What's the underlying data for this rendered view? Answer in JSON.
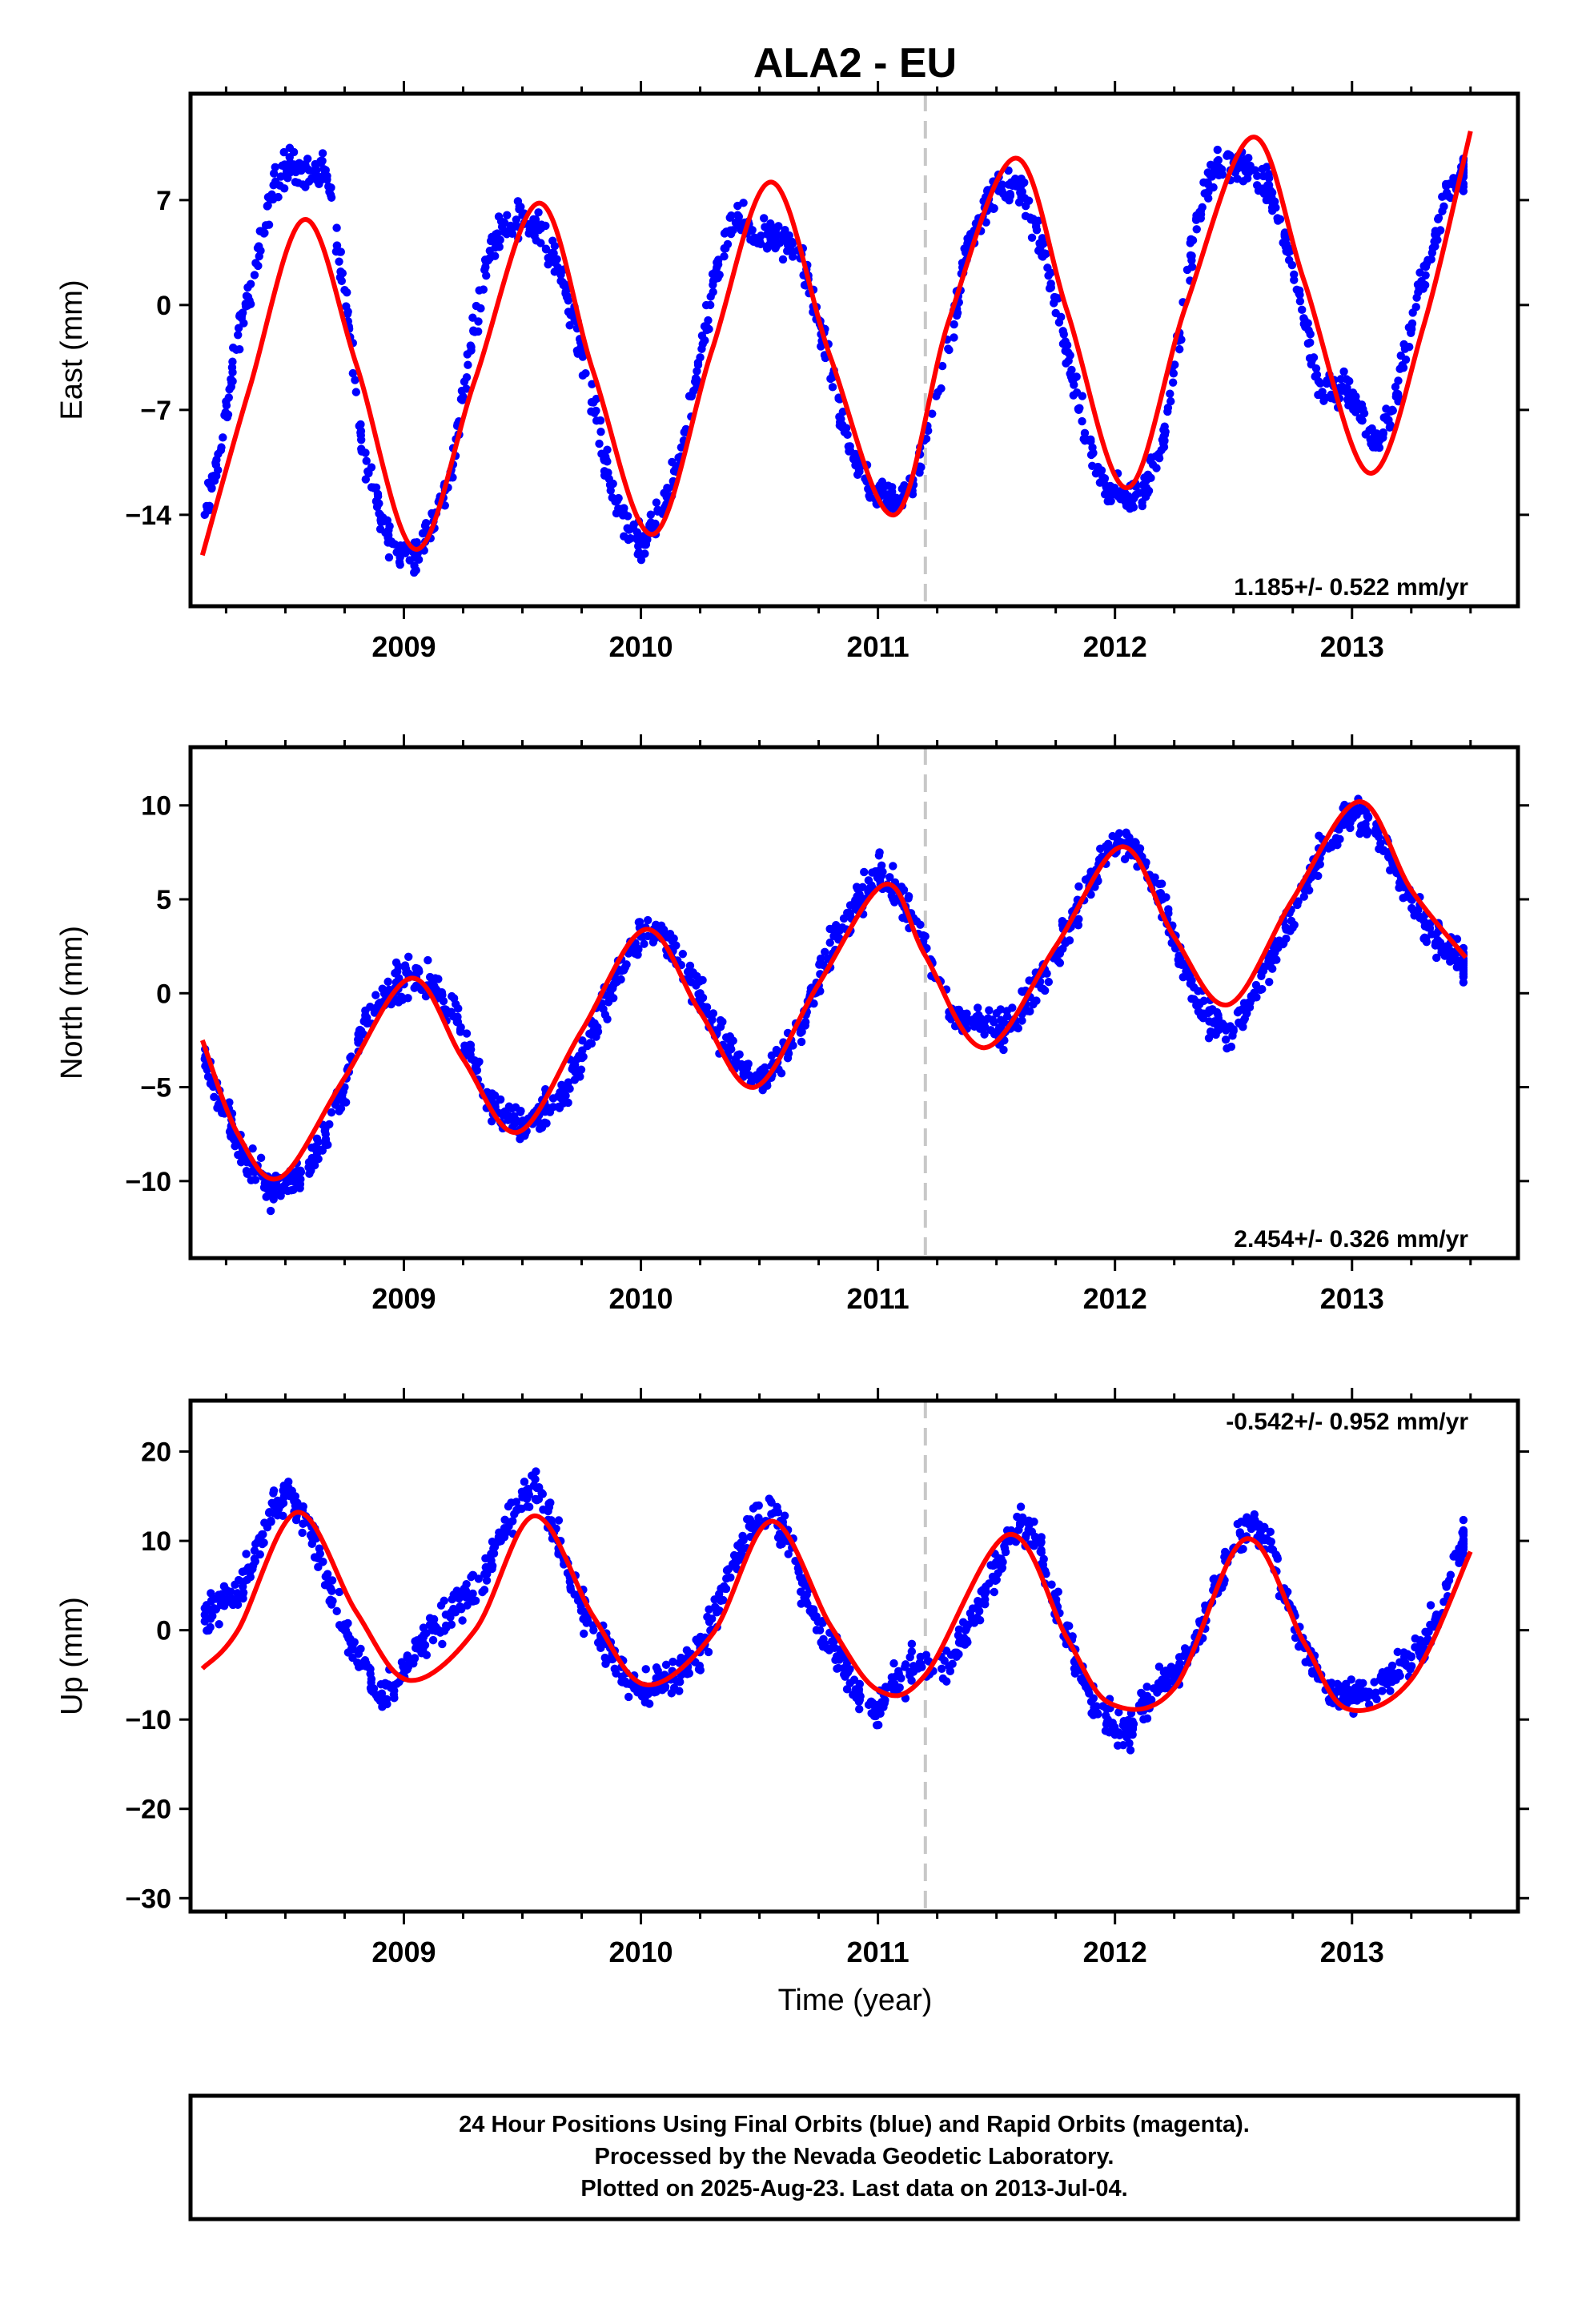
{
  "title": "ALA2 - EU",
  "colors": {
    "points": "#0000ff",
    "fit": "#ff0000",
    "eventLine": "#c8c8c8",
    "frame": "#000000"
  },
  "xlabel": "Time (year)",
  "chart_data": [
    {
      "type": "scatter",
      "component": "East",
      "ylabel": "East (mm)",
      "rate": "1.185+/- 0.522 mm/yr",
      "rate_position": "bottom-right",
      "xlim": [
        2008.1,
        2013.7
      ],
      "ylim": [
        -20.1,
        14.1
      ],
      "yticks": [
        {
          "value": 7,
          "label": "7"
        },
        {
          "value": 0,
          "label": "0"
        },
        {
          "value": -7,
          "label": "−7"
        },
        {
          "value": -14,
          "label": "−14"
        }
      ],
      "xticks": [
        {
          "value": 2009,
          "label": "2009"
        },
        {
          "value": 2010,
          "label": "2010"
        },
        {
          "value": 2011,
          "label": "2011"
        },
        {
          "value": 2012,
          "label": "2012"
        },
        {
          "value": 2013,
          "label": "2013"
        }
      ],
      "event_line_x": 2011.2,
      "series": [
        {
          "kind": "observed",
          "x": [
            2008.16,
            2008.23,
            2008.3,
            2008.37,
            2008.45,
            2008.52,
            2008.6,
            2008.67,
            2008.75,
            2008.82,
            2008.9,
            2008.97,
            2009.05,
            2009.12,
            2009.2,
            2009.27,
            2009.35,
            2009.42,
            2009.5,
            2009.57,
            2009.65,
            2009.72,
            2009.8,
            2009.87,
            2009.95,
            2010.02,
            2010.1,
            2010.17,
            2010.25,
            2010.32,
            2010.4,
            2010.47,
            2010.55,
            2010.62,
            2010.7,
            2010.77,
            2010.85,
            2010.92,
            2011.0,
            2011.07,
            2011.15,
            2011.3,
            2011.37,
            2011.45,
            2011.52,
            2011.6,
            2011.67,
            2011.75,
            2011.82,
            2011.9,
            2011.97,
            2012.05,
            2012.12,
            2012.2,
            2012.27,
            2012.35,
            2012.42,
            2012.5,
            2012.57,
            2012.65,
            2012.72,
            2012.8,
            2012.87,
            2012.95,
            2013.02,
            2013.1,
            2013.17,
            2013.25,
            2013.32,
            2013.4,
            2013.47
          ],
          "y": [
            -14.0,
            -9.5,
            -2.0,
            2.0,
            8.0,
            9.5,
            9.0,
            9.0,
            1.0,
            -9.0,
            -14.0,
            -16.5,
            -16.5,
            -15.0,
            -11.0,
            -4.0,
            3.0,
            5.5,
            6.0,
            5.0,
            2.5,
            -1.0,
            -6.5,
            -12.0,
            -15.0,
            -16.0,
            -13.5,
            -9.5,
            -3.5,
            2.5,
            5.5,
            5.0,
            4.5,
            4.0,
            2.0,
            -2.5,
            -8.0,
            -11.0,
            -13.0,
            -13.0,
            -12.0,
            -3.0,
            3.5,
            6.5,
            8.0,
            7.5,
            5.0,
            0.5,
            -5.0,
            -10.0,
            -12.5,
            -13.0,
            -12.5,
            -9.0,
            -2.0,
            6.0,
            9.0,
            9.5,
            9.0,
            8.0,
            4.5,
            -1.0,
            -6.0,
            -5.5,
            -6.5,
            -9.5,
            -7.0,
            -1.5,
            3.0,
            7.5,
            9.0
          ]
        },
        {
          "kind": "model",
          "x": [
            2008.15,
            2008.35,
            2008.58,
            2008.8,
            2009.05,
            2009.3,
            2009.57,
            2009.8,
            2010.05,
            2010.3,
            2010.55,
            2010.8,
            2011.07,
            2011.3,
            2011.58,
            2011.8,
            2012.05,
            2012.3,
            2012.58,
            2012.8,
            2013.07,
            2013.3,
            2013.5
          ],
          "y": [
            -16.7,
            -5.5,
            5.7,
            -4.0,
            -16.3,
            -5.0,
            6.8,
            -4.5,
            -15.3,
            -3.0,
            8.2,
            -3.5,
            -14.0,
            -1.0,
            9.8,
            -0.5,
            -12.2,
            0.0,
            11.2,
            1.5,
            -11.2,
            -1.5,
            11.6
          ]
        }
      ]
    },
    {
      "type": "scatter",
      "component": "North",
      "ylabel": "North (mm)",
      "rate": "2.454+/- 0.326 mm/yr",
      "rate_position": "bottom-right",
      "xlim": [
        2008.1,
        2013.7
      ],
      "ylim": [
        -14.1,
        13.1
      ],
      "yticks": [
        {
          "value": 10,
          "label": "10"
        },
        {
          "value": 5,
          "label": "5"
        },
        {
          "value": 0,
          "label": "0"
        },
        {
          "value": -5,
          "label": "−5"
        },
        {
          "value": -10,
          "label": "−10"
        }
      ],
      "xticks": [
        {
          "value": 2009,
          "label": "2009"
        },
        {
          "value": 2010,
          "label": "2010"
        },
        {
          "value": 2011,
          "label": "2011"
        },
        {
          "value": 2012,
          "label": "2012"
        },
        {
          "value": 2013,
          "label": "2013"
        }
      ],
      "event_line_x": 2011.2,
      "series": [
        {
          "kind": "observed",
          "x": [
            2008.16,
            2008.23,
            2008.3,
            2008.37,
            2008.45,
            2008.52,
            2008.6,
            2008.67,
            2008.75,
            2008.82,
            2008.9,
            2008.97,
            2009.05,
            2009.12,
            2009.2,
            2009.27,
            2009.35,
            2009.42,
            2009.5,
            2009.57,
            2009.65,
            2009.72,
            2009.8,
            2009.87,
            2009.95,
            2010.02,
            2010.1,
            2010.17,
            2010.25,
            2010.32,
            2010.4,
            2010.47,
            2010.55,
            2010.62,
            2010.7,
            2010.77,
            2010.85,
            2010.92,
            2011.0,
            2011.07,
            2011.15,
            2011.3,
            2011.37,
            2011.45,
            2011.52,
            2011.6,
            2011.67,
            2011.75,
            2011.82,
            2011.9,
            2011.97,
            2012.05,
            2012.12,
            2012.2,
            2012.27,
            2012.35,
            2012.42,
            2012.5,
            2012.57,
            2012.65,
            2012.72,
            2012.8,
            2012.87,
            2012.95,
            2013.02,
            2013.1,
            2013.17,
            2013.25,
            2013.32,
            2013.4,
            2013.47
          ],
          "y": [
            -3.5,
            -6.0,
            -8.0,
            -9.5,
            -10.5,
            -10.0,
            -9.0,
            -7.5,
            -5.0,
            -2.0,
            -0.5,
            0.5,
            1.0,
            0.5,
            -1.0,
            -3.0,
            -5.5,
            -6.5,
            -7.0,
            -6.5,
            -5.5,
            -4.0,
            -2.0,
            0.0,
            2.5,
            3.5,
            3.0,
            1.5,
            0.0,
            -2.0,
            -3.5,
            -4.5,
            -4.5,
            -3.0,
            -1.0,
            1.5,
            3.5,
            5.0,
            6.5,
            5.5,
            4.0,
            -1.0,
            -1.5,
            -1.5,
            -2.0,
            -1.0,
            0.5,
            2.0,
            4.0,
            6.0,
            7.5,
            8.0,
            7.0,
            5.0,
            2.0,
            -0.5,
            -1.5,
            -2.0,
            -0.5,
            1.5,
            3.5,
            5.5,
            7.5,
            9.0,
            9.5,
            8.5,
            7.0,
            5.0,
            3.5,
            2.5,
            1.5
          ]
        },
        {
          "kind": "model",
          "x": [
            2008.15,
            2008.3,
            2008.48,
            2008.75,
            2009.03,
            2009.25,
            2009.48,
            2009.75,
            2010.02,
            2010.25,
            2010.48,
            2010.75,
            2011.03,
            2011.2,
            2011.45,
            2011.75,
            2012.03,
            2012.25,
            2012.48,
            2012.75,
            2013.03,
            2013.25,
            2013.48
          ],
          "y": [
            -2.5,
            -7.5,
            -9.8,
            -4.5,
            0.8,
            -3.5,
            -7.4,
            -2.0,
            3.4,
            -1.0,
            -5.0,
            0.5,
            5.8,
            2.0,
            -2.9,
            2.5,
            7.8,
            3.0,
            -0.6,
            5.0,
            10.2,
            5.5,
            1.9
          ]
        }
      ]
    },
    {
      "type": "scatter",
      "component": "Up",
      "ylabel": "Up (mm)",
      "rate": "-0.542+/- 0.952 mm/yr",
      "rate_position": "top-right",
      "xlim": [
        2008.1,
        2013.7
      ],
      "ylim": [
        -31.5,
        25.7
      ],
      "yticks": [
        {
          "value": 20,
          "label": "20"
        },
        {
          "value": 10,
          "label": "10"
        },
        {
          "value": 0,
          "label": "0"
        },
        {
          "value": -10,
          "label": "−10"
        },
        {
          "value": -20,
          "label": "−20"
        },
        {
          "value": -30,
          "label": "−30"
        }
      ],
      "xticks": [
        {
          "value": 2009,
          "label": "2009"
        },
        {
          "value": 2010,
          "label": "2010"
        },
        {
          "value": 2011,
          "label": "2011"
        },
        {
          "value": 2012,
          "label": "2012"
        },
        {
          "value": 2013,
          "label": "2013"
        }
      ],
      "event_line_x": 2011.2,
      "series": [
        {
          "kind": "observed",
          "x": [
            2008.16,
            2008.23,
            2008.3,
            2008.37,
            2008.45,
            2008.52,
            2008.6,
            2008.67,
            2008.75,
            2008.82,
            2008.9,
            2008.97,
            2009.05,
            2009.12,
            2009.2,
            2009.27,
            2009.35,
            2009.42,
            2009.5,
            2009.57,
            2009.65,
            2009.72,
            2009.8,
            2009.87,
            2009.95,
            2010.02,
            2010.1,
            2010.17,
            2010.25,
            2010.32,
            2010.4,
            2010.47,
            2010.55,
            2010.62,
            2010.7,
            2010.77,
            2010.85,
            2010.92,
            2011.0,
            2011.07,
            2011.15,
            2011.3,
            2011.37,
            2011.45,
            2011.52,
            2011.6,
            2011.67,
            2011.75,
            2011.82,
            2011.9,
            2011.97,
            2012.05,
            2012.12,
            2012.2,
            2012.27,
            2012.35,
            2012.42,
            2012.5,
            2012.57,
            2012.65,
            2012.72,
            2012.8,
            2012.87,
            2012.95,
            2013.02,
            2013.1,
            2013.17,
            2013.25,
            2013.32,
            2013.4,
            2013.47
          ],
          "y": [
            1.0,
            3.0,
            4.0,
            8.0,
            14.0,
            15.0,
            12.0,
            6.0,
            0.0,
            -4.0,
            -7.5,
            -6.0,
            -2.0,
            0.0,
            2.0,
            4.0,
            7.0,
            11.0,
            15.0,
            16.0,
            10.0,
            4.0,
            0.0,
            -2.0,
            -6.0,
            -7.0,
            -5.0,
            -5.0,
            -2.0,
            2.0,
            8.0,
            12.0,
            13.0,
            10.0,
            4.0,
            -1.0,
            -3.0,
            -8.0,
            -9.0,
            -6.0,
            -4.0,
            -4.0,
            0.0,
            4.0,
            8.0,
            12.0,
            10.0,
            3.0,
            -2.0,
            -8.0,
            -10.0,
            -12.0,
            -9.0,
            -6.0,
            -4.0,
            -1.0,
            5.0,
            9.0,
            12.0,
            10.0,
            4.0,
            -2.0,
            -5.0,
            -8.0,
            -7.0,
            -7.0,
            -5.0,
            -3.0,
            -1.0,
            5.0,
            10.0
          ]
        },
        {
          "kind": "model",
          "x": [
            2008.15,
            2008.3,
            2008.55,
            2008.8,
            2009.02,
            2009.3,
            2009.55,
            2009.8,
            2010.02,
            2010.3,
            2010.55,
            2010.8,
            2011.0,
            2011.2,
            2011.55,
            2011.8,
            2011.98,
            2012.25,
            2012.55,
            2012.8,
            2012.98,
            2013.25,
            2013.5
          ],
          "y": [
            -4.3,
            0.0,
            13.2,
            2.0,
            -5.6,
            0.0,
            12.8,
            1.5,
            -6.1,
            -0.5,
            12.2,
            0.5,
            -6.7,
            -5.0,
            10.7,
            -1.0,
            -8.2,
            -6.5,
            10.2,
            -1.5,
            -8.8,
            -5.5,
            8.8
          ]
        }
      ]
    }
  ],
  "footer": {
    "line1": "24 Hour Positions Using Final Orbits (blue) and Rapid Orbits (magenta).",
    "line2": "Processed by the Nevada Geodetic Laboratory.",
    "line3": "Plotted on 2025-Aug-23. Last data on 2013-Jul-04."
  }
}
